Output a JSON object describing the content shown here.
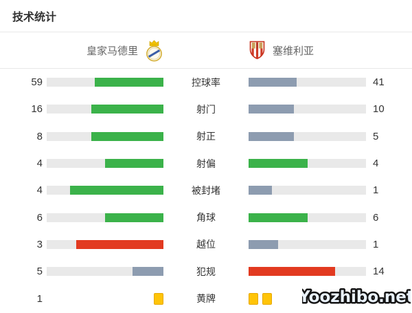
{
  "title": "技术统计",
  "watermark": "Yoozhibo.net",
  "teams": {
    "home": {
      "name": "皇家马德里",
      "crest": "real-madrid-crest"
    },
    "away": {
      "name": "塞维利亚",
      "crest": "sevilla-crest"
    }
  },
  "colors": {
    "green": "#3bb24a",
    "slate": "#8d9cb0",
    "red": "#e23a20",
    "track": "#e9e9e9",
    "card_fill": "#ffc408",
    "card_border": "#e6a700"
  },
  "rows": [
    {
      "label": "控球率",
      "home": {
        "value": "59",
        "pct": 59,
        "color": "green"
      },
      "away": {
        "value": "41",
        "pct": 41,
        "color": "slate"
      }
    },
    {
      "label": "射门",
      "home": {
        "value": "16",
        "pct": 61.5,
        "color": "green"
      },
      "away": {
        "value": "10",
        "pct": 38.5,
        "color": "slate"
      }
    },
    {
      "label": "射正",
      "home": {
        "value": "8",
        "pct": 61.5,
        "color": "green"
      },
      "away": {
        "value": "5",
        "pct": 38.5,
        "color": "slate"
      }
    },
    {
      "label": "射偏",
      "home": {
        "value": "4",
        "pct": 50,
        "color": "green"
      },
      "away": {
        "value": "4",
        "pct": 50,
        "color": "green"
      }
    },
    {
      "label": "被封堵",
      "home": {
        "value": "4",
        "pct": 80,
        "color": "green"
      },
      "away": {
        "value": "1",
        "pct": 20,
        "color": "slate"
      }
    },
    {
      "label": "角球",
      "home": {
        "value": "6",
        "pct": 50,
        "color": "green"
      },
      "away": {
        "value": "6",
        "pct": 50,
        "color": "green"
      }
    },
    {
      "label": "越位",
      "home": {
        "value": "3",
        "pct": 75,
        "color": "red"
      },
      "away": {
        "value": "1",
        "pct": 25,
        "color": "slate"
      }
    },
    {
      "label": "犯规",
      "home": {
        "value": "5",
        "pct": 26.3,
        "color": "slate"
      },
      "away": {
        "value": "14",
        "pct": 73.7,
        "color": "red"
      }
    },
    {
      "label": "黄牌",
      "type": "cards",
      "home": {
        "value": "1",
        "cards": 1
      },
      "away": {
        "value": "",
        "cards": 2
      }
    }
  ],
  "chart_data": {
    "type": "bar",
    "title": "技术统计",
    "categories": [
      "控球率",
      "射门",
      "射正",
      "射偏",
      "被封堵",
      "角球",
      "越位",
      "犯规",
      "黄牌"
    ],
    "series": [
      {
        "name": "皇家马德里",
        "values": [
          59,
          16,
          8,
          4,
          4,
          6,
          3,
          5,
          1
        ]
      },
      {
        "name": "塞维利亚",
        "values": [
          41,
          10,
          5,
          4,
          1,
          6,
          1,
          14,
          2
        ]
      }
    ],
    "legend_position": "top",
    "xlabel": "",
    "ylabel": "",
    "notes": "Mirrored horizontal bar pairs; fill fraction = value/(home+away). Green = leading or tied positive stat, slate gray = trailing side, red = worse side on negative stats (offsides, fouls); yellow cards drawn as card icons."
  }
}
